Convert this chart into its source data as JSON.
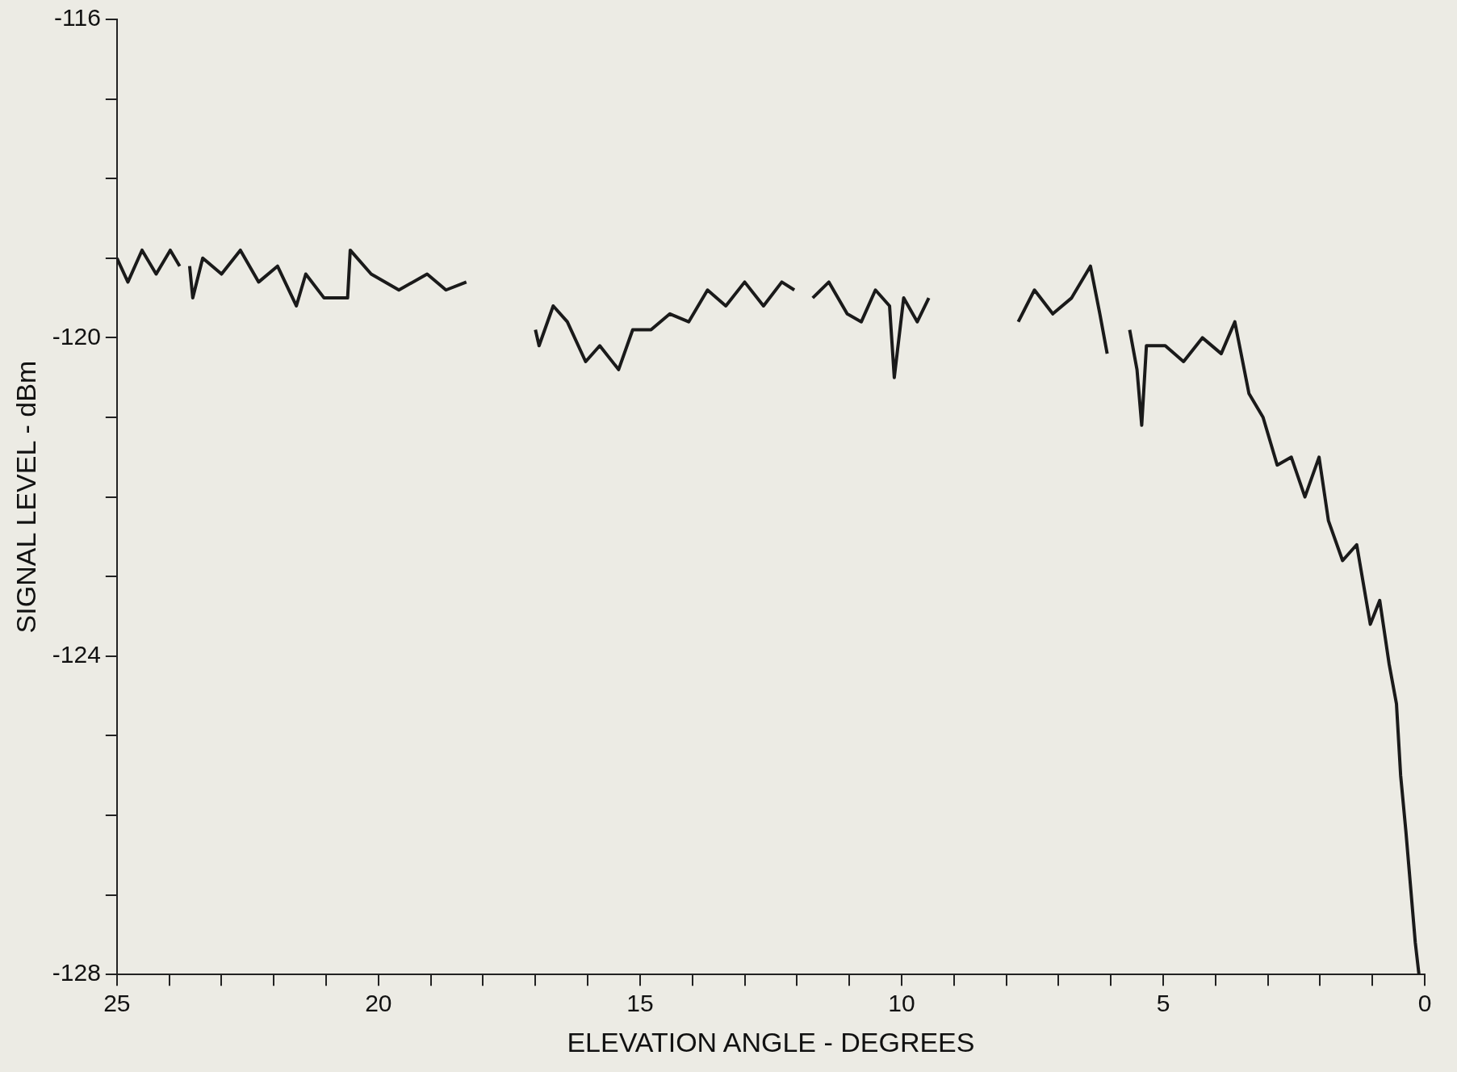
{
  "chart_data": {
    "type": "line",
    "xlabel": "ELEVATION ANGLE - DEGREES",
    "ylabel": "SIGNAL LEVEL - dBm",
    "xlim": [
      25,
      0
    ],
    "ylim": [
      -128,
      -116
    ],
    "xticks": [
      25,
      {
        "value": 24,
        "label": null
      },
      {
        "value": 23,
        "label": null
      },
      {
        "value": 22,
        "label": null
      },
      {
        "value": 21,
        "label": null
      },
      20,
      {
        "value": 19,
        "label": null
      },
      {
        "value": 18,
        "label": null
      },
      {
        "value": 17,
        "label": null
      },
      {
        "value": 16,
        "label": null
      },
      15,
      {
        "value": 14,
        "label": null
      },
      {
        "value": 13,
        "label": null
      },
      {
        "value": 12,
        "label": null
      },
      {
        "value": 11,
        "label": null
      },
      10,
      {
        "value": 9,
        "label": null
      },
      {
        "value": 8,
        "label": null
      },
      {
        "value": 7,
        "label": null
      },
      {
        "value": 6,
        "label": null
      },
      5,
      {
        "value": 4,
        "label": null
      },
      {
        "value": 3,
        "label": null
      },
      {
        "value": 2,
        "label": null
      },
      {
        "value": 1,
        "label": null
      },
      0
    ],
    "yticks": [
      -128,
      {
        "value": -127,
        "label": null
      },
      {
        "value": -126,
        "label": null
      },
      {
        "value": -125,
        "label": null
      },
      -124,
      {
        "value": -123,
        "label": null
      },
      {
        "value": -122,
        "label": null
      },
      {
        "value": -121,
        "label": null
      },
      -120,
      {
        "value": -119,
        "label": null
      },
      {
        "value": -118,
        "label": null
      },
      {
        "value": -117,
        "label": null
      },
      -116
    ],
    "grid": false,
    "legend": false,
    "marker": "none",
    "line_style": "solid",
    "series": [
      {
        "color": "#1a1a1a",
        "x": [
          25.0,
          24.79,
          24.52,
          24.25,
          23.98,
          23.8,
          23.7,
          23.61,
          23.55,
          23.36,
          23.0,
          22.64,
          22.29,
          21.93,
          21.57,
          21.39,
          21.04,
          20.59,
          20.54,
          20.14,
          19.61,
          19.07,
          18.71,
          18.32,
          17.6,
          17.0,
          16.93,
          16.66,
          16.39,
          16.04,
          15.77,
          15.41,
          15.14,
          14.79,
          14.43,
          14.07,
          13.71,
          13.36,
          13.0,
          12.64,
          12.29,
          12.05,
          11.9,
          11.7,
          11.39,
          11.04,
          10.77,
          10.5,
          10.23,
          10.14,
          9.96,
          9.7,
          9.48,
          8.5,
          7.77,
          7.46,
          7.11,
          6.75,
          6.39,
          6.21,
          6.07,
          6.0,
          5.64,
          5.5,
          5.41,
          5.32,
          4.96,
          4.61,
          4.25,
          3.89,
          3.63,
          3.36,
          3.09,
          2.82,
          2.55,
          2.29,
          2.02,
          1.84,
          1.57,
          1.3,
          1.04,
          0.86,
          0.68,
          0.54,
          0.46,
          0.36,
          0.27,
          0.18,
          0.11
        ],
        "values": [
          -119.0,
          -119.3,
          -118.9,
          -119.2,
          -118.9,
          -119.1,
          null,
          -119.1,
          -119.5,
          -119.0,
          -119.2,
          -118.9,
          -119.3,
          -119.1,
          -119.6,
          -119.2,
          -119.5,
          -119.5,
          -118.9,
          -119.2,
          -119.4,
          -119.2,
          -119.4,
          -119.3,
          null,
          -119.9,
          -120.1,
          -119.6,
          -119.8,
          -120.3,
          -120.1,
          -120.4,
          -119.9,
          -119.9,
          -119.7,
          -119.8,
          -119.4,
          -119.6,
          -119.3,
          -119.6,
          -119.3,
          -119.4,
          null,
          -119.5,
          -119.3,
          -119.7,
          -119.8,
          -119.4,
          -119.6,
          -120.5,
          -119.5,
          -119.8,
          -119.5,
          null,
          -119.8,
          -119.4,
          -119.7,
          -119.5,
          -119.1,
          -119.7,
          -120.2,
          null,
          -119.9,
          -120.4,
          -121.1,
          -120.1,
          -120.1,
          -120.3,
          -120.0,
          -120.2,
          -119.8,
          -120.7,
          -121.0,
          -121.6,
          -121.5,
          -122.0,
          -121.5,
          -122.3,
          -122.8,
          -122.6,
          -123.6,
          -123.3,
          -124.1,
          -124.6,
          -125.5,
          -126.2,
          -126.9,
          -127.6,
          -128.0
        ]
      }
    ]
  }
}
